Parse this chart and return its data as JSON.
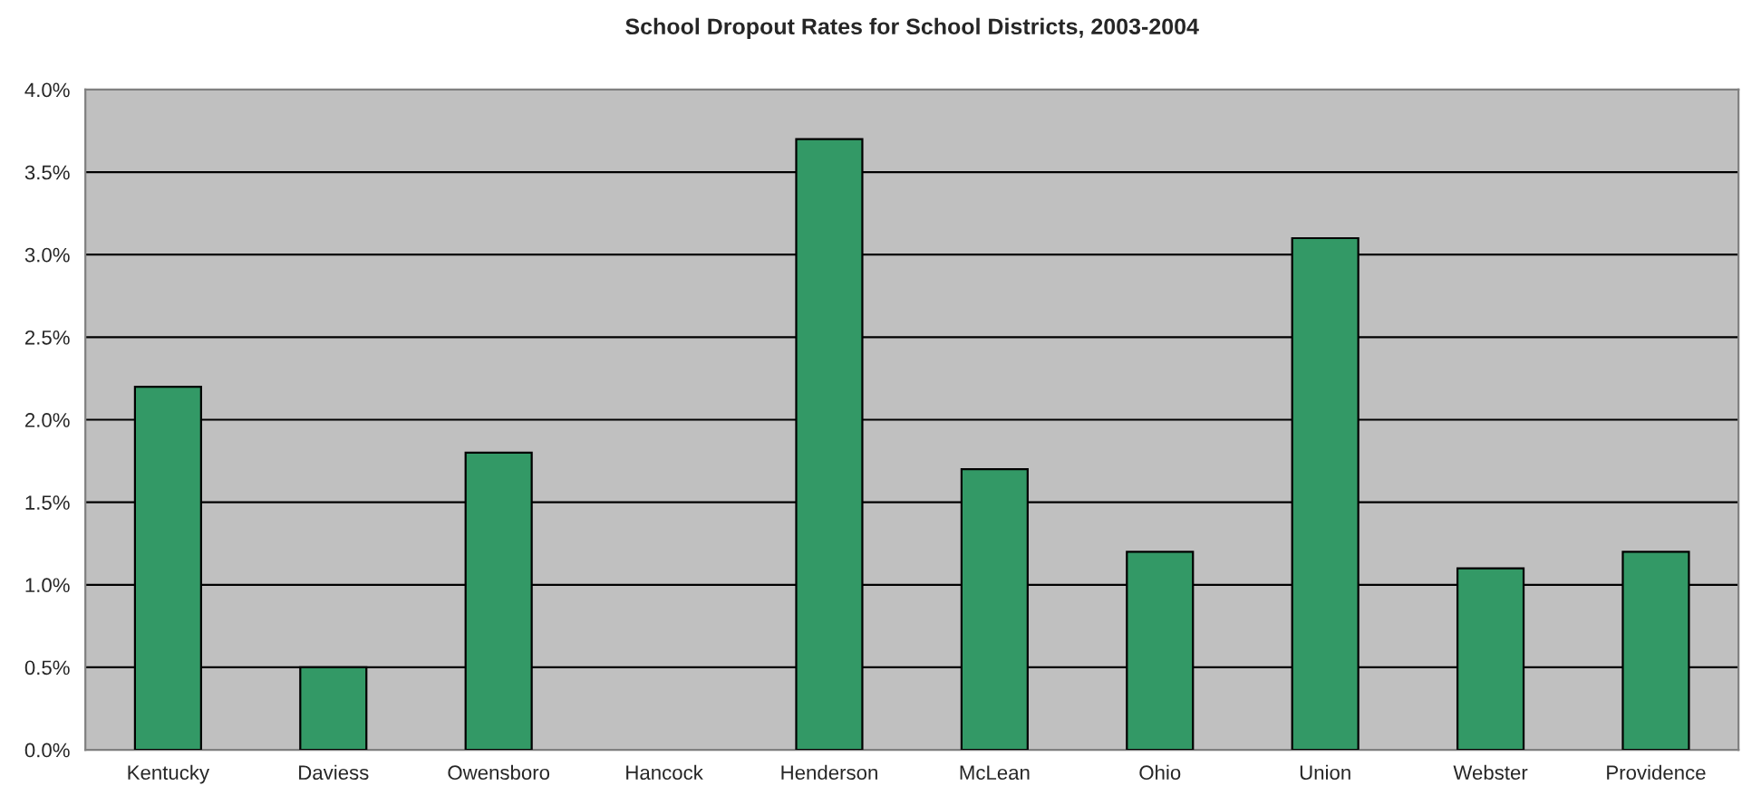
{
  "chart_data": {
    "type": "bar",
    "title": "School Dropout Rates for School Districts, 2003-2004",
    "categories": [
      "Kentucky",
      "Daviess",
      "Owensboro",
      "Hancock",
      "Henderson",
      "McLean",
      "Ohio",
      "Union",
      "Webster",
      "Providence"
    ],
    "values": [
      2.2,
      0.5,
      1.8,
      null,
      3.7,
      1.7,
      1.2,
      3.1,
      1.1,
      1.2
    ],
    "color": "#339966",
    "ylim": [
      0,
      4
    ],
    "yticks": [
      {
        "value": 0,
        "label": "0.0%"
      },
      {
        "value": 0.5,
        "label": "0.5%"
      },
      {
        "value": 1,
        "label": "1.0%"
      },
      {
        "value": 1.5,
        "label": "1.5%"
      },
      {
        "value": 2,
        "label": "2.0%"
      },
      {
        "value": 2.5,
        "label": "2.5%"
      },
      {
        "value": 3,
        "label": "3.0%"
      },
      {
        "value": 3.5,
        "label": "3.5%"
      },
      {
        "value": 4,
        "label": "4.0%"
      }
    ],
    "grid": "y"
  }
}
